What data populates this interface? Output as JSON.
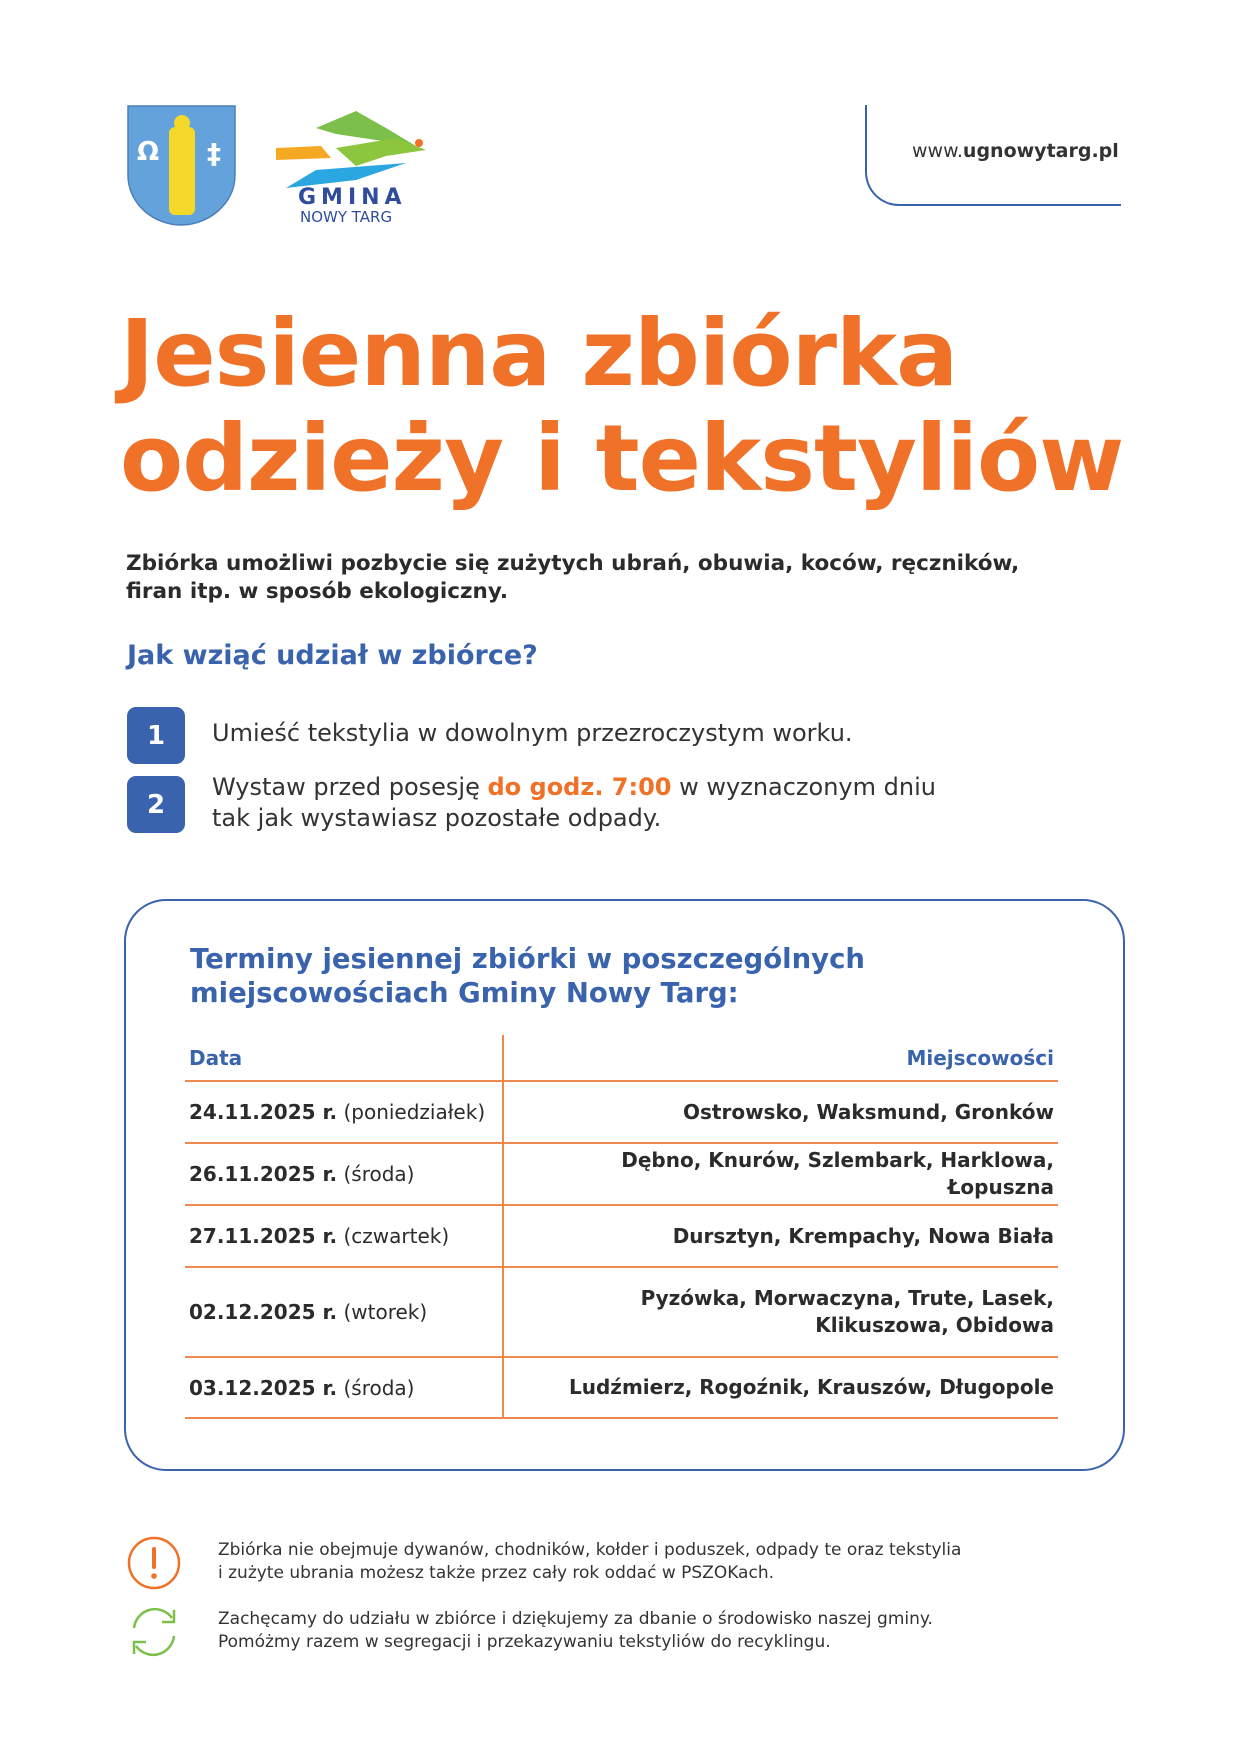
{
  "header": {
    "url_prefix": "www.",
    "url_bold": "ugnowytarg.pl",
    "logo_text_1": "GMINA",
    "logo_text_2": "NOWY TARG"
  },
  "title": {
    "line1": "Jesienna zbiórka",
    "line2": "odzieży i tekstyliów"
  },
  "intro": "Zbiórka umożliwi pozbycie się zużytych ubrań, obuwia, koców, ręczników, firan itp. w sposób ekologiczny.",
  "howto": {
    "heading": "Jak wziąć udział w zbiórce?",
    "steps": [
      {
        "num": "1",
        "text": "Umieść tekstylia w dowolnym przezroczystym worku."
      },
      {
        "num": "2",
        "before": "Wystaw przed posesję ",
        "highlight": "do godz. 7:00",
        "after": " w wyznaczonym dniu",
        "line2": "tak jak wystawiasz pozostałe odpady."
      }
    ]
  },
  "schedule": {
    "title_line1": "Terminy jesiennej zbiórki w poszczególnych",
    "title_line2": "miejscowościach Gminy Nowy Targ:",
    "col_date": "Data",
    "col_places": "Miejscowości",
    "rows": [
      {
        "date": "24.11.2025 r.",
        "day": "(poniedziałek)",
        "places": "Ostrowsko, Waksmund, Gronków"
      },
      {
        "date": "26.11.2025 r.",
        "day": "(środa)",
        "places": "Dębno, Knurów, Szlembark, Harklowa, Łopuszna"
      },
      {
        "date": "27.11.2025 r.",
        "day": "(czwartek)",
        "places": "Dursztyn, Krempachy, Nowa Biała"
      },
      {
        "date": "02.12.2025 r.",
        "day": "(wtorek)",
        "places": "Pyzówka, Morwaczyna, Trute, Lasek,",
        "places2": "Klikuszowa, Obidowa"
      },
      {
        "date": "03.12.2025 r.",
        "day": "(środa)",
        "places": "Ludźmierz, Rogoźnik, Krauszów, Długopole"
      }
    ]
  },
  "notes": [
    {
      "icon": "exclamation-icon",
      "line1": "Zbiórka nie obejmuje dywanów, chodników, kołder i poduszek, odpady te oraz tekstylia",
      "line2": "i zużyte ubrania możesz także przez cały rok oddać w PSZOKach."
    },
    {
      "icon": "recycle-icon",
      "line1": "Zachęcamy do udziału w zbiórce i dziękujemy za dbanie o środowisko naszej gminy.",
      "line2": "Pomóżmy razem w segregacji i przekazywaniu tekstyliów do recyklingu."
    }
  ],
  "colors": {
    "orange": "#f07128",
    "blue": "#3a63ad",
    "green": "#7cc04b"
  }
}
